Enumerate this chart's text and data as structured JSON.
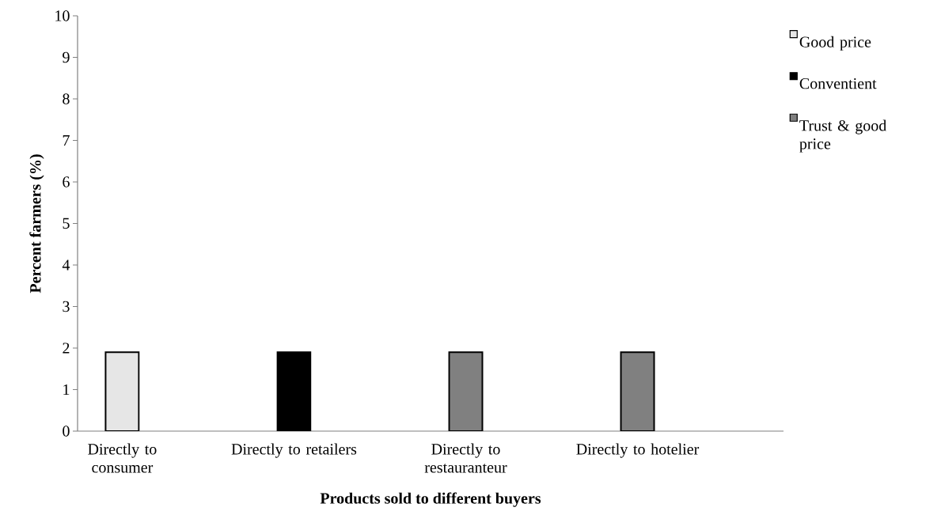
{
  "chart_data": {
    "type": "bar",
    "xlabel": "Products sold to different buyers",
    "ylabel": "Percent farmers (%)",
    "categories": [
      "Directly to consumer",
      "Directly to retailers",
      "Directly to restauranteur",
      "Directly to hotelier"
    ],
    "series": [
      {
        "name": "Good price",
        "color": "#e6e6e6",
        "values": [
          1.9,
          null,
          null,
          null
        ]
      },
      {
        "name": "Conventient",
        "color": "#000000",
        "values": [
          null,
          1.9,
          null,
          null
        ]
      },
      {
        "name": "Trust & good price",
        "color": "#808080",
        "values": [
          null,
          null,
          1.9,
          1.9
        ]
      }
    ],
    "ylim": [
      0,
      10
    ],
    "yticks": [
      0,
      1,
      2,
      3,
      4,
      5,
      6,
      7,
      8,
      9,
      10
    ],
    "grid": false,
    "legend": "right"
  }
}
